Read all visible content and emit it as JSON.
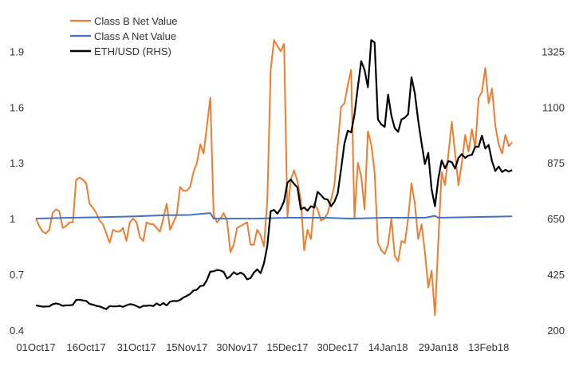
{
  "chart_data": {
    "type": "line",
    "legend_position": "top-left",
    "grid": false,
    "x_ticks": [
      "01Oct17",
      "16Oct17",
      "31Oct17",
      "15Nov17",
      "30Nov17",
      "15Dec17",
      "30Dec17",
      "14Jan18",
      "29Jan18",
      "13Feb18"
    ],
    "x_range_days": [
      0,
      151
    ],
    "ylim_left": [
      0.4,
      2.0
    ],
    "yticks_left": [
      "0.4",
      "0.7",
      "1",
      "1.3",
      "1.6",
      "1.9"
    ],
    "ylim_right": [
      200,
      1400
    ],
    "yticks_right": [
      "200",
      "425",
      "650",
      "875",
      "1100",
      "1325"
    ],
    "series": [
      {
        "name": "Class B Net Value",
        "axis": "left",
        "color": "#ED7D31",
        "points": [
          [
            0,
            1.0
          ],
          [
            1,
            0.96
          ],
          [
            2,
            0.93
          ],
          [
            3,
            0.92
          ],
          [
            4,
            0.94
          ],
          [
            5,
            1.03
          ],
          [
            6,
            1.05
          ],
          [
            7,
            1.04
          ],
          [
            8,
            0.95
          ],
          [
            9,
            0.96
          ],
          [
            10,
            0.98
          ],
          [
            11,
            0.98
          ],
          [
            12,
            1.21
          ],
          [
            13,
            1.22
          ],
          [
            14,
            1.21
          ],
          [
            15,
            1.19
          ],
          [
            16,
            1.08
          ],
          [
            17,
            1.06
          ],
          [
            18,
            1.03
          ],
          [
            19,
            0.99
          ],
          [
            20,
            0.97
          ],
          [
            21,
            0.92
          ],
          [
            22,
            0.87
          ],
          [
            23,
            0.94
          ],
          [
            24,
            0.93
          ],
          [
            25,
            0.93
          ],
          [
            26,
            0.95
          ],
          [
            27,
            0.88
          ],
          [
            28,
            0.98
          ],
          [
            29,
            1.0
          ],
          [
            30,
            0.98
          ],
          [
            31,
            0.9
          ],
          [
            32,
            0.88
          ],
          [
            33,
            0.98
          ],
          [
            34,
            0.97
          ],
          [
            35,
            0.97
          ],
          [
            36,
            0.95
          ],
          [
            37,
            0.93
          ],
          [
            38,
            1.0
          ],
          [
            39,
            1.08
          ],
          [
            40,
            0.94
          ],
          [
            41,
            0.98
          ],
          [
            42,
            1.02
          ],
          [
            43,
            1.17
          ],
          [
            44,
            1.15
          ],
          [
            45,
            1.15
          ],
          [
            46,
            1.17
          ],
          [
            47,
            1.25
          ],
          [
            48,
            1.3
          ],
          [
            49,
            1.4
          ],
          [
            50,
            1.35
          ],
          [
            51,
            1.5
          ],
          [
            52,
            1.65
          ],
          [
            53,
            1.02
          ],
          [
            54,
            0.98
          ],
          [
            55,
            1.0
          ],
          [
            56,
            1.03
          ],
          [
            57,
            0.99
          ],
          [
            58,
            0.82
          ],
          [
            59,
            0.86
          ],
          [
            60,
            0.95
          ],
          [
            61,
            0.96
          ],
          [
            62,
            0.97
          ],
          [
            63,
            0.98
          ],
          [
            64,
            0.86
          ],
          [
            65,
            0.86
          ],
          [
            66,
            0.94
          ],
          [
            67,
            0.91
          ],
          [
            68,
            0.85
          ],
          [
            69,
            1.1
          ],
          [
            70,
            1.8
          ],
          [
            71,
            1.96
          ],
          [
            72,
            1.93
          ],
          [
            73,
            1.9
          ],
          [
            74,
            1.94
          ],
          [
            75,
            1.01
          ],
          [
            76,
            1.21
          ],
          [
            77,
            1.26
          ],
          [
            78,
            1.2
          ],
          [
            79,
            1.1
          ],
          [
            80,
            0.83
          ],
          [
            81,
            0.94
          ],
          [
            82,
            0.89
          ],
          [
            83,
            1.08
          ],
          [
            84,
            1.05
          ],
          [
            85,
            0.99
          ],
          [
            86,
            1.0
          ],
          [
            87,
            1.03
          ],
          [
            88,
            1.1
          ],
          [
            89,
            1.18
          ],
          [
            90,
            1.4
          ],
          [
            91,
            1.6
          ],
          [
            92,
            1.62
          ],
          [
            93,
            1.72
          ],
          [
            94,
            1.8
          ],
          [
            95,
            1.0
          ],
          [
            96,
            1.3
          ],
          [
            97,
            1.23
          ],
          [
            98,
            1.05
          ],
          [
            99,
            1.47
          ],
          [
            100,
            1.4
          ],
          [
            101,
            1.25
          ],
          [
            102,
            0.87
          ],
          [
            103,
            0.83
          ],
          [
            104,
            0.81
          ],
          [
            105,
            0.86
          ],
          [
            106,
            1.0
          ],
          [
            107,
            0.8
          ],
          [
            108,
            0.77
          ],
          [
            109,
            0.88
          ],
          [
            110,
            0.87
          ],
          [
            111,
            1.0
          ],
          [
            112,
            1.19
          ],
          [
            113,
            1.08
          ],
          [
            114,
            0.89
          ],
          [
            115,
            0.97
          ],
          [
            116,
            0.82
          ],
          [
            117,
            0.63
          ],
          [
            118,
            0.72
          ],
          [
            119,
            0.48
          ],
          [
            120,
            0.88
          ],
          [
            121,
            1.25
          ],
          [
            122,
            1.18
          ],
          [
            123,
            1.35
          ],
          [
            124,
            1.52
          ],
          [
            125,
            1.35
          ],
          [
            126,
            1.18
          ],
          [
            127,
            1.3
          ],
          [
            128,
            1.45
          ],
          [
            129,
            1.36
          ],
          [
            130,
            1.48
          ],
          [
            131,
            1.38
          ],
          [
            132,
            1.65
          ],
          [
            133,
            1.68
          ],
          [
            134,
            1.81
          ],
          [
            135,
            1.62
          ],
          [
            136,
            1.7
          ],
          [
            137,
            1.5
          ],
          [
            138,
            1.4
          ],
          [
            139,
            1.35
          ],
          [
            140,
            1.45
          ],
          [
            141,
            1.39
          ],
          [
            142,
            1.41
          ]
        ]
      },
      {
        "name": "Class A Net Value",
        "axis": "left",
        "color": "#4472C4",
        "points": [
          [
            0,
            1.0
          ],
          [
            10,
            1.005
          ],
          [
            20,
            1.008
          ],
          [
            30,
            1.012
          ],
          [
            38,
            1.018
          ],
          [
            46,
            1.02
          ],
          [
            52,
            1.03
          ],
          [
            53,
            1.0
          ],
          [
            65,
            1.0
          ],
          [
            75,
            1.005
          ],
          [
            86,
            1.005
          ],
          [
            94,
            1.0
          ],
          [
            104,
            1.005
          ],
          [
            116,
            1.005
          ],
          [
            119,
            1.015
          ],
          [
            120,
            1.005
          ],
          [
            142,
            1.012
          ]
        ]
      },
      {
        "name": "ETH/USD (RHS)",
        "axis": "right",
        "color": "#000000",
        "points": [
          [
            0,
            300
          ],
          [
            2,
            295
          ],
          [
            4,
            296
          ],
          [
            5,
            305
          ],
          [
            6,
            308
          ],
          [
            7,
            305
          ],
          [
            8,
            298
          ],
          [
            9,
            300
          ],
          [
            10,
            300
          ],
          [
            11,
            302
          ],
          [
            12,
            322
          ],
          [
            13,
            323
          ],
          [
            14,
            320
          ],
          [
            15,
            318
          ],
          [
            16,
            306
          ],
          [
            17,
            303
          ],
          [
            18,
            298
          ],
          [
            19,
            296
          ],
          [
            20,
            290
          ],
          [
            21,
            285
          ],
          [
            22,
            297
          ],
          [
            23,
            296
          ],
          [
            24,
            296
          ],
          [
            25,
            298
          ],
          [
            26,
            294
          ],
          [
            27,
            300
          ],
          [
            28,
            305
          ],
          [
            29,
            303
          ],
          [
            30,
            297
          ],
          [
            31,
            291
          ],
          [
            32,
            298
          ],
          [
            33,
            298
          ],
          [
            34,
            300
          ],
          [
            35,
            297
          ],
          [
            36,
            308
          ],
          [
            37,
            300
          ],
          [
            38,
            309
          ],
          [
            39,
            300
          ],
          [
            40,
            315
          ],
          [
            41,
            318
          ],
          [
            42,
            317
          ],
          [
            43,
            322
          ],
          [
            44,
            332
          ],
          [
            45,
            338
          ],
          [
            46,
            346
          ],
          [
            47,
            360
          ],
          [
            48,
            363
          ],
          [
            49,
            378
          ],
          [
            50,
            380
          ],
          [
            51,
            403
          ],
          [
            52,
            436
          ],
          [
            53,
            437
          ],
          [
            54,
            443
          ],
          [
            55,
            441
          ],
          [
            56,
            435
          ],
          [
            57,
            408
          ],
          [
            58,
            418
          ],
          [
            59,
            434
          ],
          [
            60,
            425
          ],
          [
            61,
            432
          ],
          [
            62,
            425
          ],
          [
            63,
            405
          ],
          [
            64,
            410
          ],
          [
            65,
            432
          ],
          [
            66,
            445
          ],
          [
            67,
            430
          ],
          [
            68,
            470
          ],
          [
            69,
            540
          ],
          [
            70,
            680
          ],
          [
            71,
            685
          ],
          [
            72,
            670
          ],
          [
            73,
            690
          ],
          [
            74,
            720
          ],
          [
            75,
            795
          ],
          [
            76,
            808
          ],
          [
            77,
            790
          ],
          [
            78,
            776
          ],
          [
            79,
            688
          ],
          [
            80,
            695
          ],
          [
            81,
            682
          ],
          [
            82,
            700
          ],
          [
            83,
            695
          ],
          [
            84,
            758
          ],
          [
            85,
            745
          ],
          [
            86,
            730
          ],
          [
            87,
            727
          ],
          [
            88,
            700
          ],
          [
            89,
            718
          ],
          [
            90,
            752
          ],
          [
            91,
            850
          ],
          [
            92,
            953
          ],
          [
            93,
            1005
          ],
          [
            94,
            998
          ],
          [
            95,
            1070
          ],
          [
            96,
            1180
          ],
          [
            97,
            1285
          ],
          [
            98,
            1250
          ],
          [
            99,
            1180
          ],
          [
            100,
            1370
          ],
          [
            101,
            1360
          ],
          [
            102,
            1050
          ],
          [
            103,
            1030
          ],
          [
            104,
            1020
          ],
          [
            105,
            1150
          ],
          [
            106,
            1065
          ],
          [
            107,
            1015
          ],
          [
            108,
            1000
          ],
          [
            109,
            1050
          ],
          [
            110,
            1057
          ],
          [
            111,
            1072
          ],
          [
            112,
            1220
          ],
          [
            113,
            1155
          ],
          [
            114,
            1045
          ],
          [
            115,
            955
          ],
          [
            116,
            870
          ],
          [
            117,
            915
          ],
          [
            118,
            768
          ],
          [
            119,
            700
          ],
          [
            120,
            810
          ],
          [
            121,
            885
          ],
          [
            122,
            853
          ],
          [
            123,
            882
          ],
          [
            124,
            878
          ],
          [
            125,
            852
          ],
          [
            126,
            895
          ],
          [
            127,
            910
          ],
          [
            128,
            895
          ],
          [
            129,
            905
          ],
          [
            130,
            907
          ],
          [
            131,
            940
          ],
          [
            132,
            940
          ],
          [
            133,
            985
          ],
          [
            134,
            933
          ],
          [
            135,
            947
          ],
          [
            136,
            882
          ],
          [
            137,
            842
          ],
          [
            138,
            860
          ],
          [
            139,
            838
          ],
          [
            140,
            847
          ],
          [
            141,
            840
          ],
          [
            142,
            846
          ]
        ]
      }
    ]
  }
}
